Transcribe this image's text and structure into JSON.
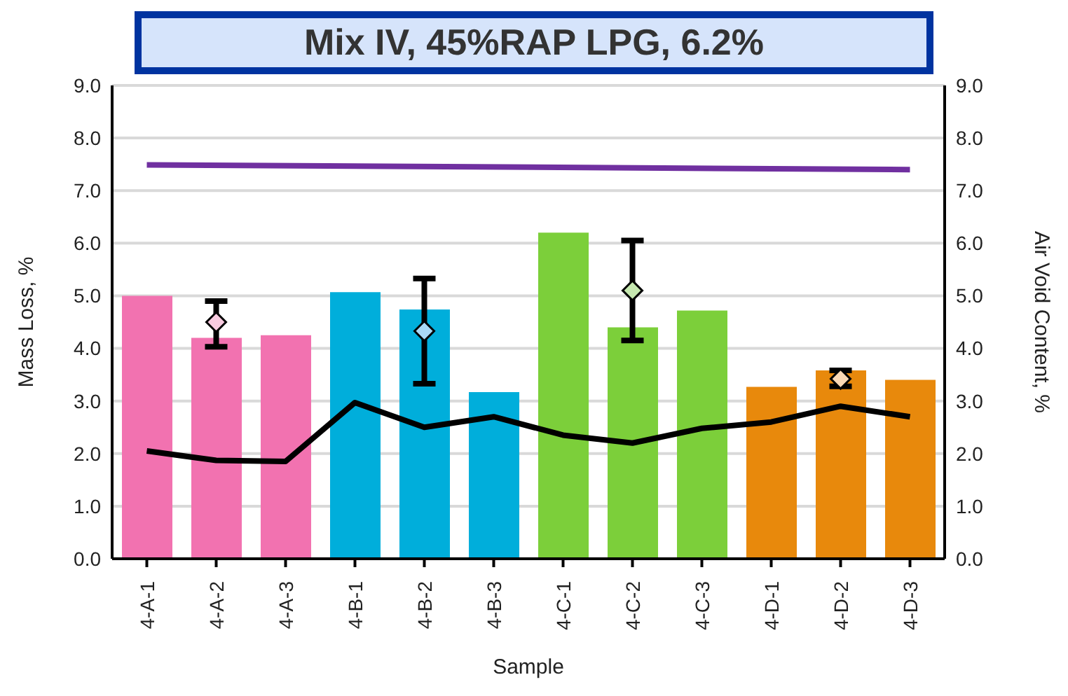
{
  "chart_data": {
    "type": "bar",
    "title": "Mix IV, 45%RAP LPG, 6.2%",
    "xlabel": "Sample",
    "ylabel": "Mass Loss, %",
    "y2label": "Air Void Content, %",
    "categories": [
      "4-A-1",
      "4-A-2",
      "4-A-3",
      "4-B-1",
      "4-B-2",
      "4-B-3",
      "4-C-1",
      "4-C-2",
      "4-C-3",
      "4-D-1",
      "4-D-2",
      "4-D-3"
    ],
    "series": [
      {
        "values": [
          5.0,
          4.2,
          4.25,
          5.07,
          4.74,
          3.17,
          6.2,
          4.4,
          4.72,
          3.27,
          3.58,
          3.4
        ],
        "colors": [
          "#f272b0",
          "#f272b0",
          "#f272b0",
          "#00aedb",
          "#00aedb",
          "#00aedb",
          "#7ccf3a",
          "#7ccf3a",
          "#7ccf3a",
          "#e8890c",
          "#e8890c",
          "#e8890c"
        ]
      },
      {
        "type": "line",
        "axis": "y2",
        "color": "#000000",
        "values": [
          2.05,
          1.87,
          1.85,
          2.97,
          2.5,
          2.7,
          2.35,
          2.2,
          2.48,
          2.6,
          2.9,
          2.7
        ]
      },
      {
        "type": "line",
        "color": "#7030a0",
        "values": [
          7.49,
          null,
          null,
          null,
          null,
          null,
          null,
          null,
          null,
          null,
          null,
          7.4
        ]
      },
      {
        "type": "scatter",
        "marker": "diamond",
        "x": [
          "4-A-2",
          "4-B-2",
          "4-C-2",
          "4-D-2"
        ],
        "values": [
          4.5,
          4.33,
          5.1,
          3.42
        ],
        "colors": [
          "#f8cbe0",
          "#a9d8f5",
          "#c6e8b0",
          "#fbd9b5"
        ],
        "errors": [
          [
            4.03,
            4.9
          ],
          [
            3.33,
            5.33
          ],
          [
            4.15,
            6.05
          ],
          [
            3.28,
            3.58
          ]
        ]
      }
    ],
    "ylim": [
      0,
      9
    ],
    "yticks": [
      {
        "value": 0,
        "label": "0.0"
      },
      {
        "value": 1,
        "label": "1.0"
      },
      {
        "value": 2,
        "label": "2.0"
      },
      {
        "value": 3,
        "label": "3.0"
      },
      {
        "value": 4,
        "label": "4.0"
      },
      {
        "value": 5,
        "label": "5.0"
      },
      {
        "value": 6,
        "label": "6.0"
      },
      {
        "value": 7,
        "label": "7.0"
      },
      {
        "value": 8,
        "label": "8.0"
      },
      {
        "value": 9,
        "label": "9.0"
      }
    ],
    "y2lim": [
      0,
      9
    ],
    "y2ticks": [
      {
        "value": 0,
        "label": "0.0"
      },
      {
        "value": 1,
        "label": "1.0"
      },
      {
        "value": 2,
        "label": "2.0"
      },
      {
        "value": 3,
        "label": "3.0"
      },
      {
        "value": 4,
        "label": "4.0"
      },
      {
        "value": 5,
        "label": "5.0"
      },
      {
        "value": 6,
        "label": "6.0"
      },
      {
        "value": 7,
        "label": "7.0"
      },
      {
        "value": 8,
        "label": "8.0"
      },
      {
        "value": 9,
        "label": "9.0"
      }
    ],
    "grid": "y",
    "legend": false,
    "line_style": "solid"
  }
}
